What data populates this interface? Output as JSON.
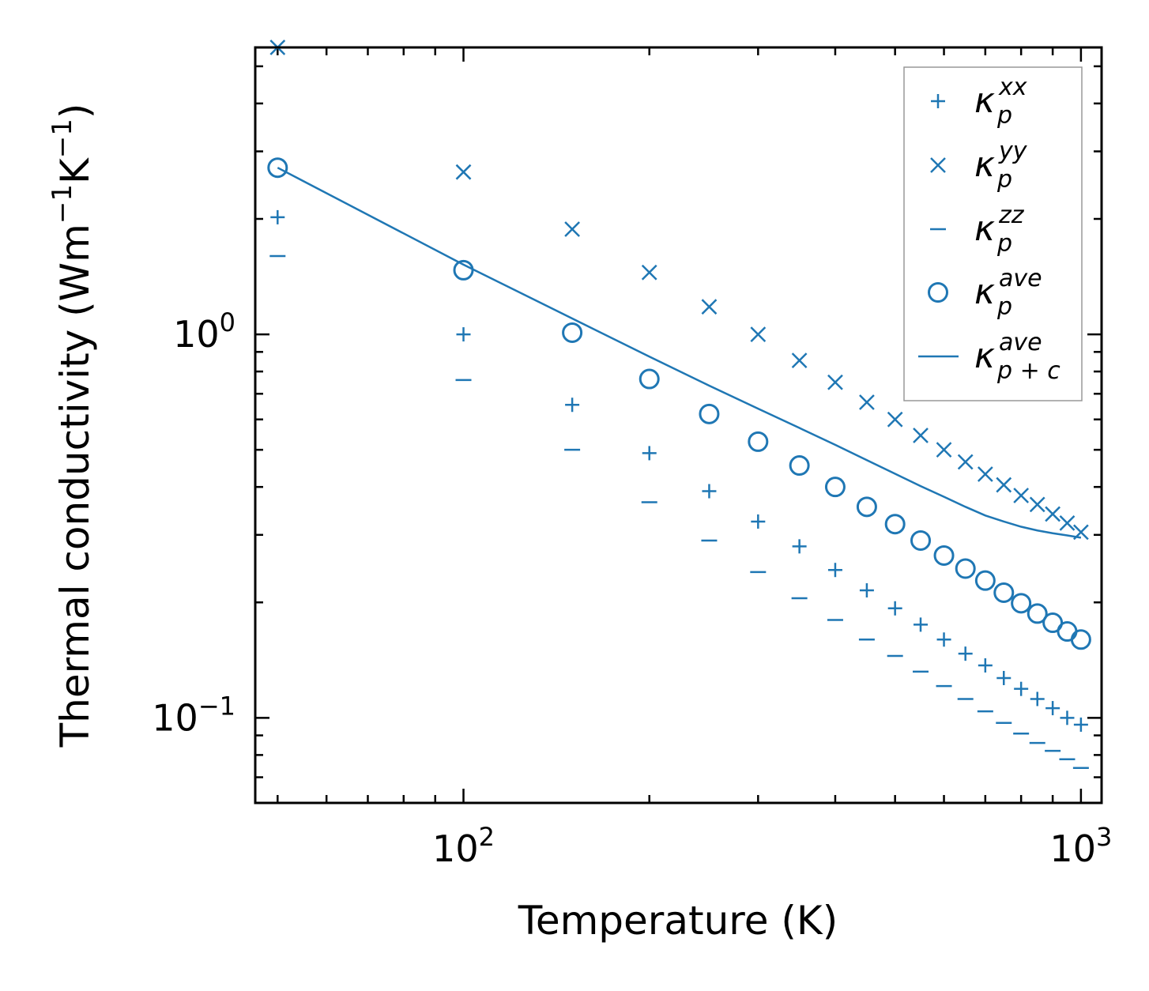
{
  "chart_data": {
    "type": "scatter",
    "title": "",
    "xlabel": "Temperature (K)",
    "ylabel": "Thermal conductivity (Wm⁻¹K⁻¹)",
    "xscale": "log",
    "yscale": "log",
    "xlim": [
      46,
      1080
    ],
    "ylim": [
      0.06,
      5.6
    ],
    "x_major_ticks": [
      {
        "value": 100,
        "base": "10",
        "exp": "2"
      },
      {
        "value": 1000,
        "base": "10",
        "exp": "3"
      }
    ],
    "y_major_ticks": [
      {
        "value": 1,
        "base": "10",
        "exp": "0"
      },
      {
        "value": 0.1,
        "base": "10",
        "exp": "−1"
      }
    ],
    "legend_position": "top-right",
    "x": [
      50,
      100,
      150,
      200,
      250,
      300,
      350,
      400,
      450,
      500,
      550,
      600,
      650,
      700,
      750,
      800,
      850,
      900,
      950,
      1000
    ],
    "series": [
      {
        "name": "kappa_p^xx",
        "symbol": "κ",
        "sub": "p",
        "sup": "xx",
        "marker": "plus",
        "values": [
          2.02,
          1.0,
          0.655,
          0.49,
          0.39,
          0.325,
          0.28,
          0.243,
          0.215,
          0.193,
          0.175,
          0.16,
          0.147,
          0.137,
          0.127,
          0.119,
          0.112,
          0.106,
          0.1,
          0.096
        ]
      },
      {
        "name": "kappa_p^yy",
        "symbol": "κ",
        "sub": "p",
        "sup": "yy",
        "marker": "x",
        "values": [
          5.6,
          2.65,
          1.88,
          1.45,
          1.18,
          1.0,
          0.855,
          0.75,
          0.665,
          0.6,
          0.545,
          0.5,
          0.465,
          0.432,
          0.405,
          0.38,
          0.36,
          0.34,
          0.322,
          0.305
        ]
      },
      {
        "name": "kappa_p^zz",
        "symbol": "κ",
        "sub": "p",
        "sup": "zz",
        "marker": "hline",
        "values": [
          1.6,
          0.76,
          0.5,
          0.365,
          0.29,
          0.24,
          0.205,
          0.18,
          0.16,
          0.145,
          0.132,
          0.121,
          0.112,
          0.104,
          0.097,
          0.091,
          0.086,
          0.082,
          0.078,
          0.074
        ]
      },
      {
        "name": "kappa_p^ave",
        "symbol": "κ",
        "sub": "p",
        "sup": "ave",
        "marker": "circle",
        "values": [
          2.72,
          1.47,
          1.01,
          0.765,
          0.62,
          0.525,
          0.455,
          0.4,
          0.355,
          0.32,
          0.29,
          0.265,
          0.245,
          0.228,
          0.212,
          0.199,
          0.187,
          0.177,
          0.168,
          0.16
        ]
      },
      {
        "name": "kappa_p+c^ave",
        "symbol": "κ",
        "sub": "p + c",
        "sup": "ave",
        "marker": "line",
        "values": [
          2.72,
          1.52,
          1.1,
          0.875,
          0.735,
          0.64,
          0.57,
          0.515,
          0.47,
          0.433,
          0.402,
          0.377,
          0.355,
          0.337,
          0.325,
          0.315,
          0.308,
          0.303,
          0.299,
          0.295
        ]
      }
    ],
    "colors": {
      "series": "#1f77b4",
      "axes": "#000000",
      "legend_border": "#999999"
    }
  }
}
